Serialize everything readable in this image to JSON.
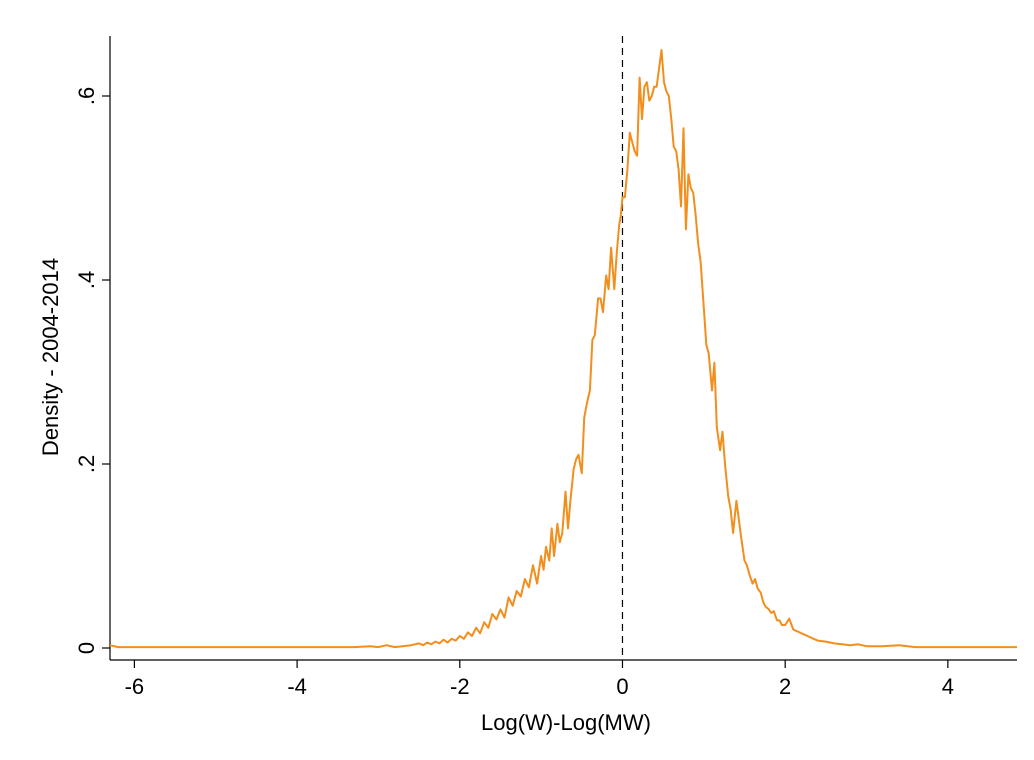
{
  "chart_data": {
    "type": "line",
    "title": "",
    "xlabel": "Log(W)-Log(MW)",
    "ylabel": "Density - 2004-2014",
    "xlim": [
      -6.3,
      4.85
    ],
    "ylim": [
      0,
      0.65
    ],
    "xticks": [
      -6,
      -4,
      -2,
      0,
      2,
      4
    ],
    "xtick_labels": [
      "-6",
      "-4",
      "-2",
      "0",
      "2",
      "4"
    ],
    "yticks": [
      0,
      0.2,
      0.4,
      0.6
    ],
    "ytick_labels": [
      "0",
      ".2",
      ".4",
      ".6"
    ],
    "grid": false,
    "legend": "none",
    "reference_line": {
      "x": 0,
      "style": "dashed",
      "color": "#000000"
    },
    "series": [
      {
        "color": "#f28e1c",
        "x": [
          -6.3,
          -6.2,
          -5.5,
          -5.0,
          -4.5,
          -4.0,
          -3.6,
          -3.3,
          -3.1,
          -3.0,
          -2.9,
          -2.8,
          -2.7,
          -2.6,
          -2.5,
          -2.45,
          -2.4,
          -2.35,
          -2.3,
          -2.25,
          -2.2,
          -2.15,
          -2.1,
          -2.05,
          -2.0,
          -1.95,
          -1.9,
          -1.85,
          -1.8,
          -1.75,
          -1.7,
          -1.65,
          -1.6,
          -1.55,
          -1.5,
          -1.45,
          -1.4,
          -1.35,
          -1.3,
          -1.25,
          -1.2,
          -1.15,
          -1.1,
          -1.05,
          -1.0,
          -0.97,
          -0.94,
          -0.9,
          -0.87,
          -0.84,
          -0.8,
          -0.77,
          -0.74,
          -0.7,
          -0.67,
          -0.64,
          -0.6,
          -0.57,
          -0.54,
          -0.5,
          -0.47,
          -0.44,
          -0.4,
          -0.37,
          -0.34,
          -0.3,
          -0.27,
          -0.24,
          -0.2,
          -0.17,
          -0.14,
          -0.1,
          -0.07,
          -0.04,
          -0.02,
          0.0,
          0.03,
          0.06,
          0.09,
          0.12,
          0.15,
          0.18,
          0.21,
          0.24,
          0.27,
          0.3,
          0.33,
          0.36,
          0.39,
          0.42,
          0.45,
          0.48,
          0.51,
          0.54,
          0.57,
          0.6,
          0.63,
          0.66,
          0.69,
          0.72,
          0.75,
          0.78,
          0.81,
          0.84,
          0.87,
          0.9,
          0.93,
          0.96,
          1.0,
          1.03,
          1.06,
          1.1,
          1.13,
          1.16,
          1.2,
          1.23,
          1.26,
          1.3,
          1.33,
          1.36,
          1.4,
          1.43,
          1.46,
          1.5,
          1.53,
          1.56,
          1.6,
          1.63,
          1.66,
          1.7,
          1.73,
          1.76,
          1.8,
          1.83,
          1.86,
          1.9,
          1.93,
          1.96,
          2.0,
          2.05,
          2.1,
          2.15,
          2.2,
          2.25,
          2.3,
          2.35,
          2.4,
          2.5,
          2.6,
          2.7,
          2.8,
          2.9,
          3.0,
          3.2,
          3.4,
          3.6,
          4.0,
          4.5,
          4.85
        ],
        "y": [
          0.003,
          0.001,
          0.001,
          0.001,
          0.001,
          0.001,
          0.001,
          0.001,
          0.002,
          0.001,
          0.003,
          0.001,
          0.002,
          0.003,
          0.005,
          0.003,
          0.006,
          0.004,
          0.007,
          0.005,
          0.009,
          0.006,
          0.01,
          0.008,
          0.013,
          0.01,
          0.017,
          0.013,
          0.022,
          0.016,
          0.028,
          0.022,
          0.037,
          0.031,
          0.042,
          0.033,
          0.055,
          0.046,
          0.062,
          0.056,
          0.075,
          0.066,
          0.09,
          0.07,
          0.1,
          0.085,
          0.11,
          0.095,
          0.13,
          0.1,
          0.135,
          0.115,
          0.125,
          0.17,
          0.13,
          0.16,
          0.195,
          0.205,
          0.21,
          0.19,
          0.25,
          0.265,
          0.28,
          0.335,
          0.34,
          0.38,
          0.38,
          0.365,
          0.405,
          0.39,
          0.435,
          0.39,
          0.43,
          0.46,
          0.47,
          0.49,
          0.49,
          0.52,
          0.56,
          0.55,
          0.54,
          0.535,
          0.62,
          0.575,
          0.61,
          0.615,
          0.595,
          0.6,
          0.61,
          0.61,
          0.63,
          0.65,
          0.615,
          0.605,
          0.6,
          0.575,
          0.545,
          0.54,
          0.52,
          0.48,
          0.565,
          0.455,
          0.515,
          0.5,
          0.495,
          0.47,
          0.44,
          0.42,
          0.37,
          0.33,
          0.32,
          0.28,
          0.31,
          0.24,
          0.215,
          0.235,
          0.2,
          0.165,
          0.15,
          0.125,
          0.16,
          0.14,
          0.12,
          0.095,
          0.09,
          0.08,
          0.07,
          0.075,
          0.065,
          0.06,
          0.05,
          0.045,
          0.042,
          0.038,
          0.04,
          0.03,
          0.03,
          0.025,
          0.025,
          0.032,
          0.02,
          0.018,
          0.016,
          0.014,
          0.012,
          0.01,
          0.008,
          0.007,
          0.005,
          0.004,
          0.003,
          0.004,
          0.002,
          0.002,
          0.003,
          0.001,
          0.001,
          0.001,
          0.001
        ]
      }
    ]
  },
  "colors": {
    "line": "#f28e1c",
    "axis": "#000000",
    "background": "#ffffff"
  }
}
